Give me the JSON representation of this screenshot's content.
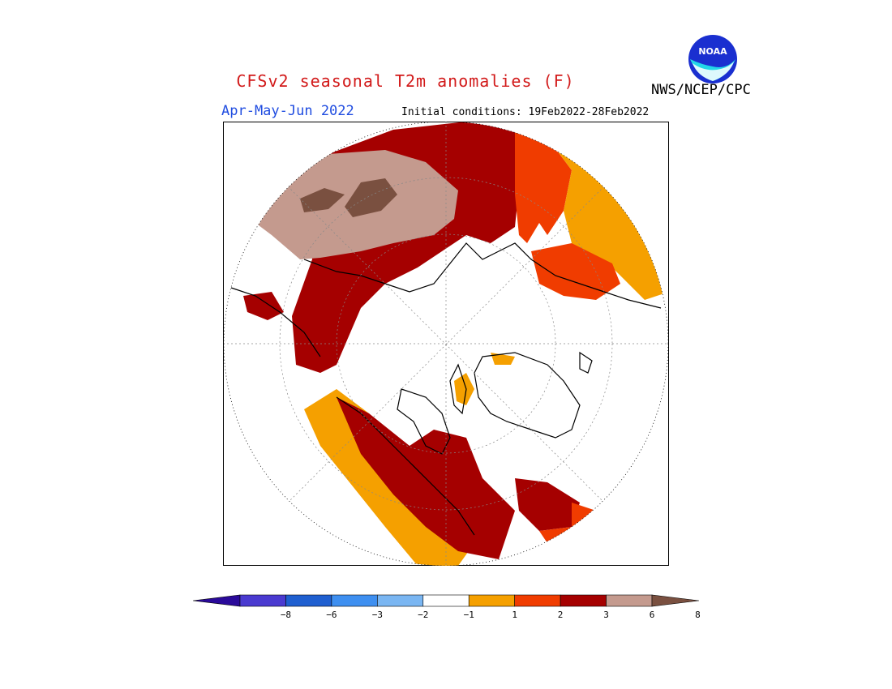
{
  "header": {
    "title": "CFSv2 seasonal T2m anomalies (F)",
    "season": "Apr-May-Jun 2022",
    "initial_conditions": "Initial conditions: 19Feb2022-28Feb2022",
    "agency": "NWS/NCEP/CPC",
    "logo_text": "NOAA"
  },
  "colors": {
    "title": "#d21a1a",
    "season": "#1f4ce0",
    "anomaly_1_2": "#f5a000",
    "anomaly_2_3": "#f03c00",
    "anomaly_3_6": "#a50000",
    "anomaly_6_8": "#c49a8e",
    "anomaly_gt_8": "#7a5040"
  },
  "colorbar": {
    "bins": [
      {
        "color": "#2a0a9a"
      },
      {
        "color": "#4a3ad0"
      },
      {
        "color": "#1f5fd0"
      },
      {
        "color": "#3e8ff0"
      },
      {
        "color": "#7ab6f2"
      },
      {
        "color": "#ffffff"
      },
      {
        "color": "#f5a000"
      },
      {
        "color": "#f03c00"
      },
      {
        "color": "#a50000"
      },
      {
        "color": "#c49a8e"
      },
      {
        "color": "#7a5040"
      }
    ],
    "tick_labels": [
      "−8",
      "−6",
      "−3",
      "−2",
      "−1",
      "1",
      "2",
      "3",
      "6",
      "8"
    ]
  }
}
